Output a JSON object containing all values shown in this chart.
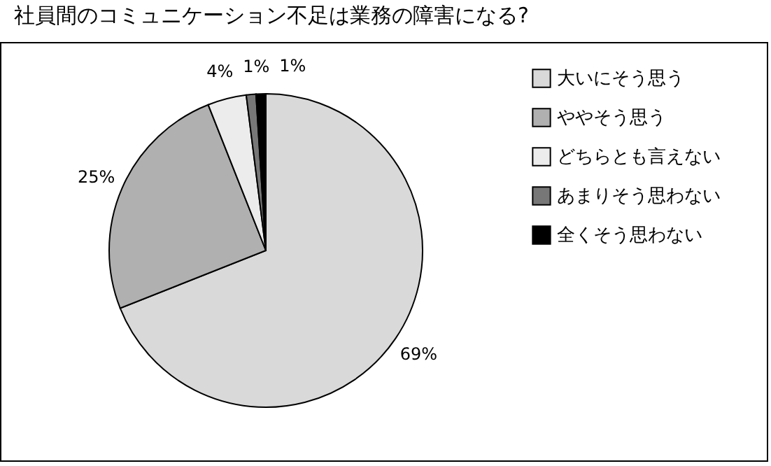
{
  "chart_data": {
    "type": "pie",
    "title": "社員間のコミュニケーション不足は業務の障害になる?",
    "categories": [
      "大いにそう思う",
      "ややそう思う",
      "どちらとも言えない",
      "あまりそう思わない",
      "全くそう思わない"
    ],
    "values": [
      69,
      25,
      4,
      1,
      1
    ],
    "colors": [
      "#d9d9d9",
      "#b0b0b0",
      "#ececec",
      "#777777",
      "#000000"
    ],
    "value_labels": [
      "69%",
      "25%",
      "4%",
      "1%",
      "1%"
    ],
    "legend": "right"
  }
}
